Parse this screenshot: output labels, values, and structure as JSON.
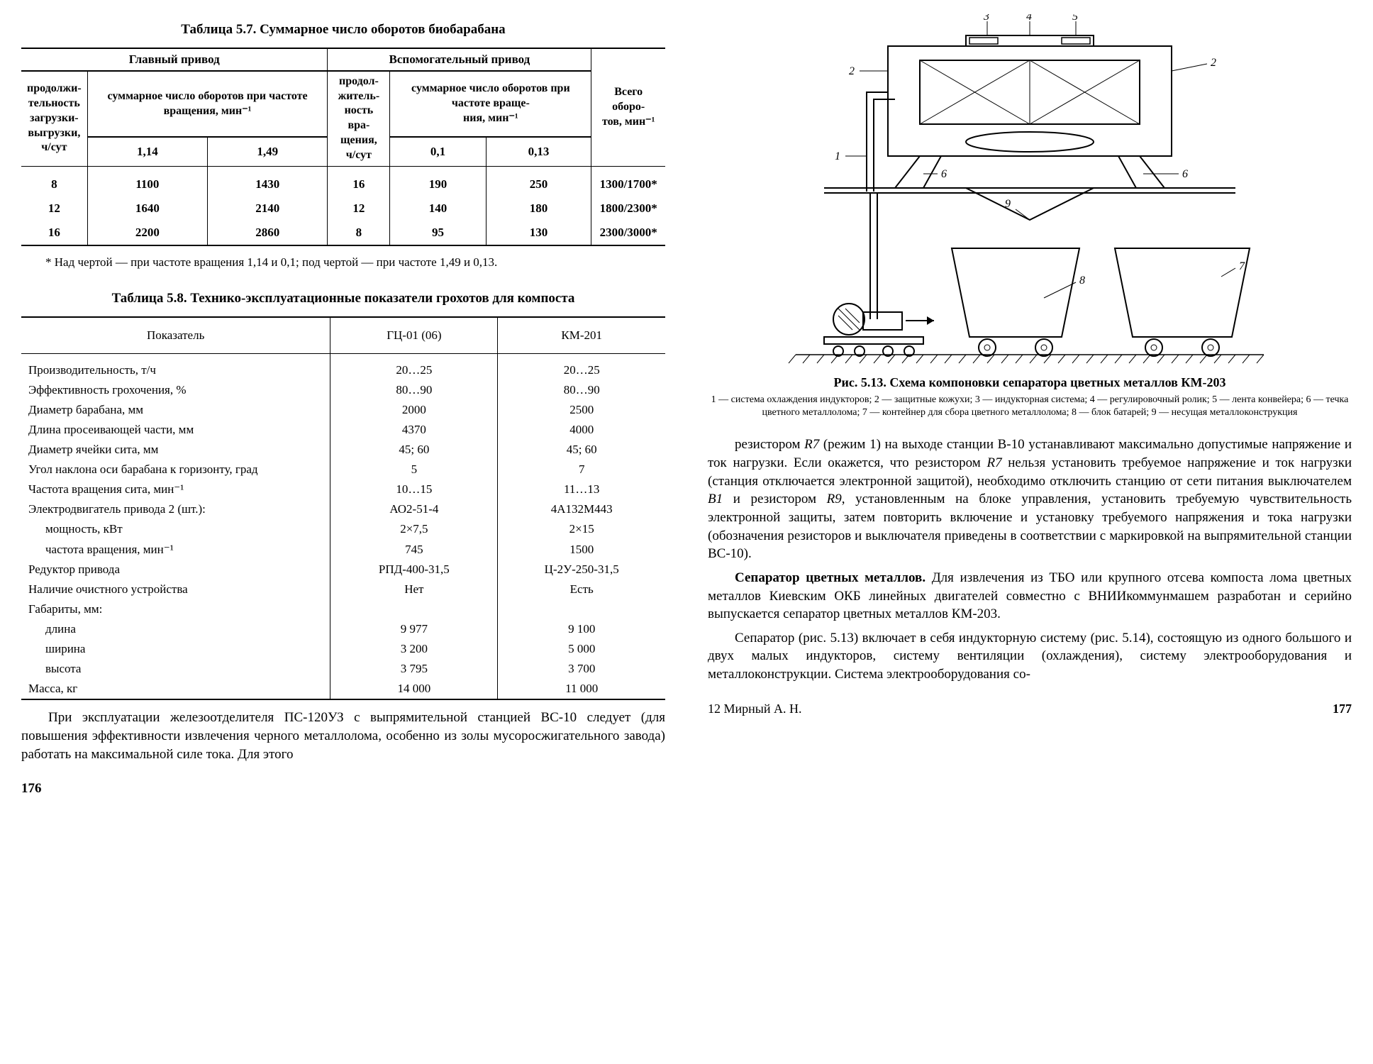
{
  "left": {
    "table57": {
      "caption": "Таблица 5.7. Суммарное число оборотов биобарабана",
      "head_main": "Главный привод",
      "head_aux": "Вспомогательный привод",
      "col1": "продолжи-\nтельность\nзагрузки-\nвыгрузки,\nч/сут",
      "col2span": "суммарное число оборотов при частоте вращения, мин⁻¹",
      "col2a": "1,14",
      "col2b": "1,49",
      "col3": "продол-\nжитель-\nность вра-\nщения,\nч/сут",
      "col4span": "суммарное число оборотов при частоте враще-\nния, мин⁻¹",
      "col4a": "0,1",
      "col4b": "0,13",
      "col5": "Всего оборо-\nтов, мин⁻¹",
      "rows": [
        [
          "8",
          "1100",
          "1430",
          "16",
          "190",
          "250",
          "1300/1700*"
        ],
        [
          "12",
          "1640",
          "2140",
          "12",
          "140",
          "180",
          "1800/2300*"
        ],
        [
          "16",
          "2200",
          "2860",
          "8",
          "95",
          "130",
          "2300/3000*"
        ]
      ],
      "footnote": "* Над чертой — при частоте вращения 1,14 и 0,1; под чертой — при частоте 1,49 и 0,13."
    },
    "table58": {
      "caption": "Таблица 5.8. Технико-эксплуатационные показатели грохотов для компоста",
      "head1": "Показатель",
      "head2": "ГЦ-01 (06)",
      "head3": "КМ-201",
      "rows": [
        [
          "Производительность, т/ч",
          "20…25",
          "20…25"
        ],
        [
          "Эффективность грохочения, %",
          "80…90",
          "80…90"
        ],
        [
          "Диаметр барабана, мм",
          "2000",
          "2500"
        ],
        [
          "Длина просеивающей части, мм",
          "4370",
          "4000"
        ],
        [
          "Диаметр ячейки сита, мм",
          "45; 60",
          "45; 60"
        ],
        [
          "Угол наклона оси барабана к горизонту, град",
          "5",
          "7"
        ],
        [
          "Частота вращения сита, мин⁻¹",
          "10…15",
          "11…13"
        ],
        [
          "Электродвигатель привода 2 (шт.):",
          "АО2-51-4",
          "4А132М443"
        ],
        [
          "мощность, кВт",
          "2×7,5",
          "2×15"
        ],
        [
          "частота вращения, мин⁻¹",
          "745",
          "1500"
        ],
        [
          "Редуктор привода",
          "РПД-400-31,5",
          "Ц-2У-250-31,5"
        ],
        [
          "Наличие очистного устройства",
          "Нет",
          "Есть"
        ],
        [
          "Габариты, мм:",
          "",
          ""
        ],
        [
          "длина",
          "9 977",
          "9 100"
        ],
        [
          "ширина",
          "3 200",
          "5 000"
        ],
        [
          "высота",
          "3 795",
          "3 700"
        ],
        [
          "Масса, кг",
          "14 000",
          "11 000"
        ]
      ],
      "indent_rows": [
        8,
        9,
        13,
        14,
        15
      ]
    },
    "para": "При эксплуатации железоотделителя ПС-120УЗ с выпрямительной станцией ВС-10 следует (для повышения эффективности извлечения черного металлолома, особенно из золы мусоросжигательного завода) работать на максимальной силе тока. Для этого",
    "pagenum": "176"
  },
  "right": {
    "fig_caption": "Рис. 5.13. Схема компоновки сепаратора цветных металлов КМ-203",
    "fig_legend": "1 — система охлаждения индукторов; 2 — защитные кожухи; 3 — индукторная система; 4 — регулировочный ролик; 5 — лента конвейера; 6 — течка цветного металлолома; 7 — контейнер для сбора цветного металлолома; 8 — блок батарей; 9 — несущая металлоконструкция",
    "para1": "резистором R7 (режим 1) на выходе станции В-10 устанавливают максимально допустимые напряжение и ток нагрузки. Если окажется, что резистором R7 нельзя установить требуемое напряжение и ток нагрузки (станция отключается электронной защитой), необходимо отключить станцию от сети питания выключателем В1 и резистором R9, установленным на блоке управления, установить требуемую чувствительность электронной защиты, затем повторить включение и установку требуемого напряжения и тока нагрузки (обозначения резисторов и выключателя приведены в соответствии с маркировкой на выпрямительной станции ВС-10).",
    "para2": "Сепаратор цветных металлов. Для извлечения из ТБО или крупного отсева компоста лома цветных металлов Киевским ОКБ линейных двигателей совместно с ВНИИкоммунмашем разработан и серийно выпускается сепаратор цветных металлов КМ-203.",
    "para3": "Сепаратор (рис. 5.13) включает в себя индукторную систему (рис. 5.14), состоящую из одного большого и двух малых индукторов, систему вентиляции (охлаждения), систему электрооборудования и металлоконструкции. Система электрооборудования со-",
    "sig": "12  Мирный А. Н.",
    "pagenum": "177"
  }
}
